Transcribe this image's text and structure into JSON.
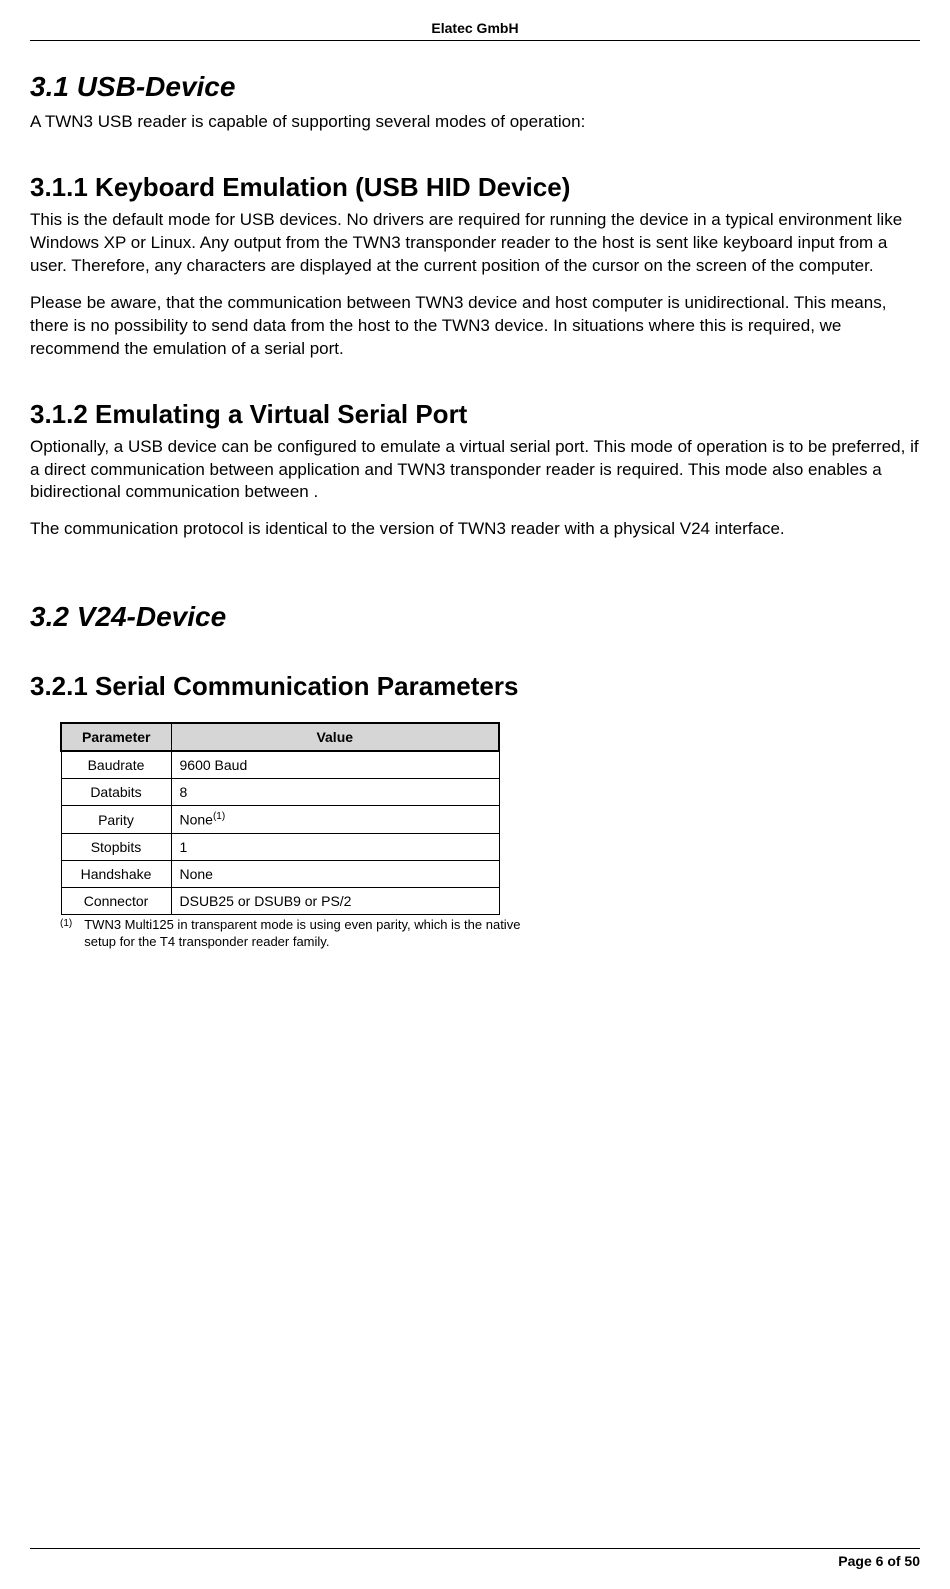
{
  "header": {
    "company": "Elatec GmbH"
  },
  "section31": {
    "title": "3.1  USB-Device",
    "intro": "A TWN3 USB reader is capable of supporting several modes of operation:"
  },
  "section311": {
    "title": "3.1.1  Keyboard Emulation (USB HID Device)",
    "p1": "This is the default mode for USB devices. No drivers are required for running the device in a typical environment like Windows XP or Linux. Any output from the TWN3 transponder reader to the host is sent like keyboard input from a user. Therefore, any characters are displayed at the current position of the cursor on the screen of the computer.",
    "p2": "Please be aware, that the communication between TWN3 device and host computer is unidirectional. This means, there is no possibility to send data from the host to the TWN3 device. In situations where this is required, we recommend the emulation of a serial port."
  },
  "section312": {
    "title": "3.1.2  Emulating a Virtual Serial Port",
    "p1": "Optionally, a USB device can be configured to emulate a virtual serial port. This mode of operation is to be preferred, if a direct communication between application and TWN3 transponder reader is required. This mode also enables a bidirectional communication between .",
    "p2": "The communication protocol is identical to the version of TWN3 reader with a physical V24 interface."
  },
  "section32": {
    "title": "3.2  V24-Device"
  },
  "section321": {
    "title": "3.2.1  Serial Communication Parameters"
  },
  "table": {
    "header_param": "Parameter",
    "header_value": "Value",
    "rows": [
      {
        "param": "Baudrate",
        "value": "9600 Baud"
      },
      {
        "param": "Databits",
        "value": "8"
      },
      {
        "param": "Parity",
        "value": "None",
        "sup": "(1)"
      },
      {
        "param": "Stopbits",
        "value": "1"
      },
      {
        "param": "Handshake",
        "value": "None"
      },
      {
        "param": "Connector",
        "value": "DSUB25 or DSUB9 or PS/2"
      }
    ]
  },
  "footnote": {
    "mark": "(1)",
    "text": "TWN3 Multi125 in transparent mode is using even parity, which is the native setup for the T4 transponder reader family."
  },
  "footer": {
    "page": "Page 6 of 50"
  }
}
